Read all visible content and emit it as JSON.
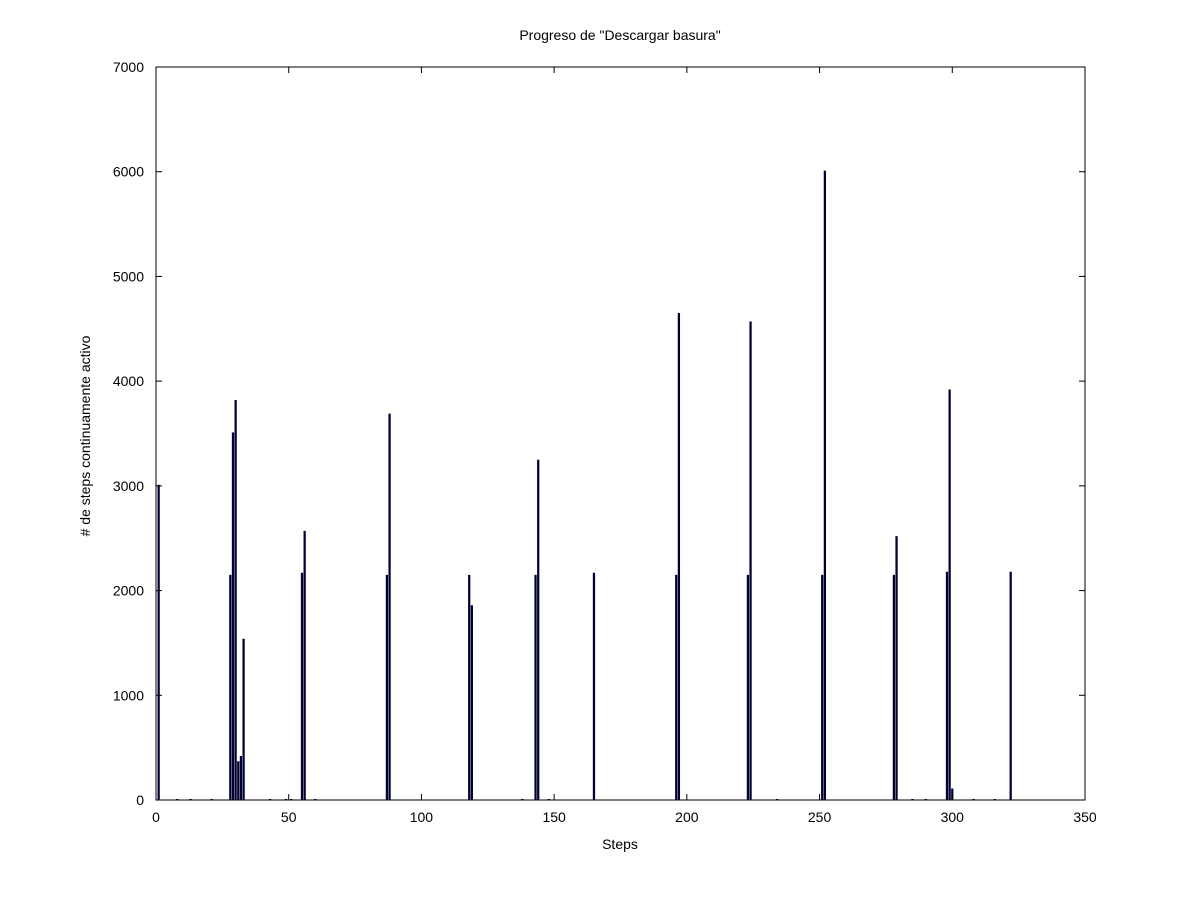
{
  "chart_data": {
    "type": "bar",
    "title": "Progreso de \"Descargar basura\"",
    "xlabel": "Steps",
    "ylabel": "# de steps continuamente activo",
    "xlim": [
      0,
      350
    ],
    "ylim": [
      0,
      7000
    ],
    "xticks": [
      0,
      50,
      100,
      150,
      200,
      250,
      300,
      350
    ],
    "yticks": [
      0,
      1000,
      2000,
      3000,
      4000,
      5000,
      6000,
      7000
    ],
    "grid": false,
    "legend": "none",
    "bar_color": "#000033",
    "bar_width": 1,
    "x": [
      1,
      8,
      13,
      21,
      28,
      29,
      30,
      31,
      32,
      33,
      43,
      49,
      51,
      55,
      56,
      60,
      87,
      88,
      118,
      119,
      138,
      143,
      144,
      148,
      165,
      196,
      197,
      223,
      224,
      234,
      251,
      252,
      278,
      279,
      285,
      290,
      298,
      299,
      300,
      308,
      316,
      322
    ],
    "values": [
      3010,
      10,
      10,
      10,
      2150,
      3510,
      3820,
      370,
      420,
      1540,
      10,
      10,
      10,
      2170,
      2570,
      10,
      2150,
      3690,
      2150,
      1860,
      10,
      2150,
      3250,
      10,
      2170,
      2150,
      4650,
      2150,
      4570,
      10,
      2150,
      6010,
      2150,
      2520,
      10,
      10,
      2180,
      3920,
      110,
      10,
      10,
      2180
    ]
  }
}
